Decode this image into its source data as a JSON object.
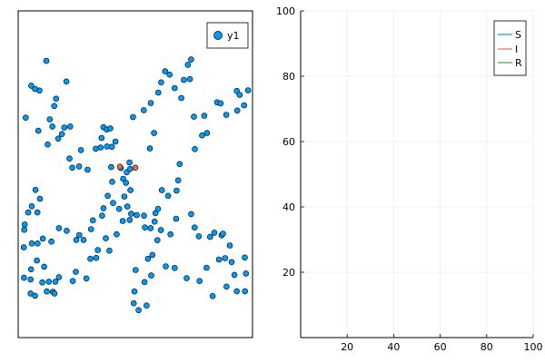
{
  "chart_data": [
    {
      "type": "scatter",
      "title": "",
      "xlabel": "",
      "ylabel": "",
      "axes_shown": false,
      "xlim": [
        0,
        100
      ],
      "ylim": [
        0,
        100
      ],
      "legend": {
        "position": "top-right",
        "entries": [
          "y1"
        ]
      },
      "colors": {
        "default": "#009AF9",
        "infected": "#E26F46"
      },
      "series": [
        {
          "name": "y1",
          "points": [
            [
              12,
              84.7
            ],
            [
              5.6,
              77.1
            ],
            [
              3.2,
              67.3
            ],
            [
              9.1,
              75.6
            ],
            [
              7.2,
              76.1
            ],
            [
              8.6,
              63.3
            ],
            [
              16.2,
              73.1
            ],
            [
              15.4,
              70.9
            ],
            [
              20.6,
              78.4
            ],
            [
              22.2,
              64.6
            ],
            [
              18.7,
              62.3
            ],
            [
              19.7,
              64.3
            ],
            [
              14.6,
              64.6
            ],
            [
              13.5,
              66.8
            ],
            [
              17.1,
              60.9
            ],
            [
              12.6,
              59.1
            ],
            [
              21.9,
              54.8
            ],
            [
              23.1,
              52.0
            ],
            [
              26.8,
              57.4
            ],
            [
              26,
              52.4
            ],
            [
              29.6,
              51.4
            ],
            [
              33.1,
              57.8
            ],
            [
              39.7,
              52.2
            ],
            [
              36.4,
              64.4
            ],
            [
              37.8,
              63.7
            ],
            [
              39.3,
              64.0
            ],
            [
              37.9,
              58.5
            ],
            [
              35.6,
              61.1
            ],
            [
              35.2,
              58.2
            ],
            [
              41.5,
              60.0
            ],
            [
              40,
              58.4
            ],
            [
              47.5,
              53.6
            ],
            [
              46.3,
              50.6
            ],
            [
              47.8,
              51.6
            ],
            [
              44.8,
              48.6
            ],
            [
              43.8,
              51.9
            ],
            [
              40.1,
              47.7
            ],
            [
              46.0,
              47.4
            ],
            [
              47.9,
              45.1
            ],
            [
              45.3,
              43.2
            ],
            [
              46.6,
              40.1
            ],
            [
              43.1,
              39.4
            ],
            [
              48.2,
              37.9
            ],
            [
              47.6,
              36.0
            ],
            [
              44.6,
              35.7
            ],
            [
              42,
              31.6
            ],
            [
              37.4,
              30.4
            ],
            [
              38.9,
              26.6
            ],
            [
              34,
              26.8
            ],
            [
              33.3,
              24.4
            ],
            [
              30.8,
              24.1
            ],
            [
              29.1,
              18.1
            ],
            [
              24.6,
              20.1
            ],
            [
              23.3,
              17.3
            ],
            [
              17.4,
              18.5
            ],
            [
              15.9,
              17.1
            ],
            [
              14.8,
              14.0
            ],
            [
              15.5,
              13.5
            ],
            [
              13.1,
              17.1
            ],
            [
              12.2,
              14.1
            ],
            [
              10.3,
              16.9
            ],
            [
              11.1,
              21.7
            ],
            [
              8.0,
              23.6
            ],
            [
              5.3,
              17.8
            ],
            [
              5.3,
              13.5
            ],
            [
              7.2,
              12.8
            ],
            [
              5.5,
              20.9
            ],
            [
              2.5,
              18.3
            ],
            [
              2.4,
              27.6
            ],
            [
              2.6,
              33.0
            ],
            [
              7.4,
              45.2
            ],
            [
              9.3,
              42.5
            ],
            [
              8.2,
              38.3
            ],
            [
              5.8,
              40.2
            ],
            [
              4.3,
              38.3
            ],
            [
              2.8,
              34.6
            ],
            [
              5.8,
              28.8
            ],
            [
              8.3,
              28.8
            ],
            [
              10.5,
              30.3
            ],
            [
              14.2,
              29.4
            ],
            [
              17.4,
              33.5
            ],
            [
              20.7,
              32.7
            ],
            [
              24.8,
              29.9
            ],
            [
              26.1,
              31.4
            ],
            [
              27.9,
              29.9
            ],
            [
              31.1,
              33.2
            ],
            [
              31.9,
              35.9
            ],
            [
              35.8,
              37.3
            ],
            [
              36.4,
              39.6
            ],
            [
              40.5,
              41.2
            ],
            [
              38.2,
              43.4
            ],
            [
              50.6,
              37.5
            ],
            [
              53.7,
              37.3
            ],
            [
              54.1,
              33.7
            ],
            [
              56.5,
              33.5
            ],
            [
              58.2,
              35.5
            ],
            [
              59.4,
              29.8
            ],
            [
              57.3,
              25.3
            ],
            [
              55.4,
              24.1
            ],
            [
              50.1,
              20.7
            ],
            [
              49.6,
              14.1
            ],
            [
              53.9,
              17.0
            ],
            [
              56.8,
              19.0
            ],
            [
              54.8,
              9.8
            ],
            [
              49.3,
              10.5
            ],
            [
              51.4,
              8.4
            ],
            [
              58.0,
              62.6
            ],
            [
              56.2,
              57.9
            ],
            [
              49.0,
              67.5
            ],
            [
              53.6,
              69.6
            ],
            [
              56.6,
              71.8
            ],
            [
              59.8,
              75.0
            ],
            [
              61.0,
              78.1
            ],
            [
              62.7,
              81.5
            ],
            [
              64.6,
              80.5
            ],
            [
              66.8,
              76.4
            ],
            [
              69.6,
              73.3
            ],
            [
              70.7,
              78.9
            ],
            [
              72.4,
              83.5
            ],
            [
              73.8,
              85.1
            ],
            [
              73.3,
              79.1
            ],
            [
              75.0,
              67.6
            ],
            [
              78.5,
              61.9
            ],
            [
              79.4,
              67.9
            ],
            [
              84.9,
              72.0
            ],
            [
              86.4,
              71.7
            ],
            [
              93.3,
              75.5
            ],
            [
              94.5,
              74.3
            ],
            [
              98.1,
              75.7
            ],
            [
              96.4,
              71.1
            ],
            [
              93.5,
              69.5
            ],
            [
              88.8,
              68.2
            ],
            [
              80.6,
              62.6
            ],
            [
              75.4,
              57.7
            ],
            [
              68.9,
              53.1
            ],
            [
              68.3,
              48.1
            ],
            [
              67.6,
              45.0
            ],
            [
              64.0,
              43.4
            ],
            [
              61.3,
              45.1
            ],
            [
              58.6,
              38.1
            ],
            [
              59.7,
              39.4
            ],
            [
              60.9,
              32.9
            ],
            [
              65.0,
              31.6
            ],
            [
              67.4,
              36.4
            ],
            [
              73.8,
              37.8
            ],
            [
              75.3,
              33.7
            ],
            [
              77.1,
              31.0
            ],
            [
              81.9,
              30.8
            ],
            [
              83.7,
              32.1
            ],
            [
              86.8,
              31.3
            ],
            [
              88.3,
              24.3
            ],
            [
              90.3,
              28.2
            ],
            [
              96.7,
              24.5
            ],
            [
              97.2,
              19.6
            ],
            [
              96.8,
              14.2
            ],
            [
              93.3,
              14.2
            ],
            [
              88.9,
              15.6
            ],
            [
              83.0,
              12.7
            ],
            [
              77.4,
              17.3
            ],
            [
              71.9,
              18.2
            ],
            [
              66.8,
              21.3
            ],
            [
              63.0,
              21.8
            ],
            [
              80.4,
              21.4
            ],
            [
              85.7,
              23.9
            ],
            [
              91.1,
              23.1
            ],
            [
              92.3,
              19.2
            ],
            [
              87.4,
              31.8
            ]
          ]
        },
        {
          "name": "",
          "infected": true,
          "points": [
            [
              43.4,
              52.3
            ],
            [
              50.0,
              52.0
            ]
          ]
        }
      ]
    },
    {
      "type": "line",
      "title": "",
      "xlabel": "",
      "ylabel": "",
      "xlim": [
        0,
        100
      ],
      "ylim": [
        0,
        100
      ],
      "xticks": [
        20,
        40,
        60,
        80,
        100
      ],
      "yticks": [
        20,
        40,
        60,
        80,
        100
      ],
      "xtick_labels": [
        "20",
        "40",
        "60",
        "80",
        "100"
      ],
      "ytick_labels": [
        "20",
        "40",
        "60",
        "80",
        "100"
      ],
      "grid": true,
      "legend": {
        "position": "top-right",
        "entries": [
          {
            "name": "S",
            "color": "#009AF9"
          },
          {
            "name": "I",
            "color": "#E26F46"
          },
          {
            "name": "R",
            "color": "#3DA44D"
          }
        ]
      },
      "series": [
        {
          "name": "S",
          "values": []
        },
        {
          "name": "I",
          "values": []
        },
        {
          "name": "R",
          "values": []
        }
      ]
    }
  ]
}
